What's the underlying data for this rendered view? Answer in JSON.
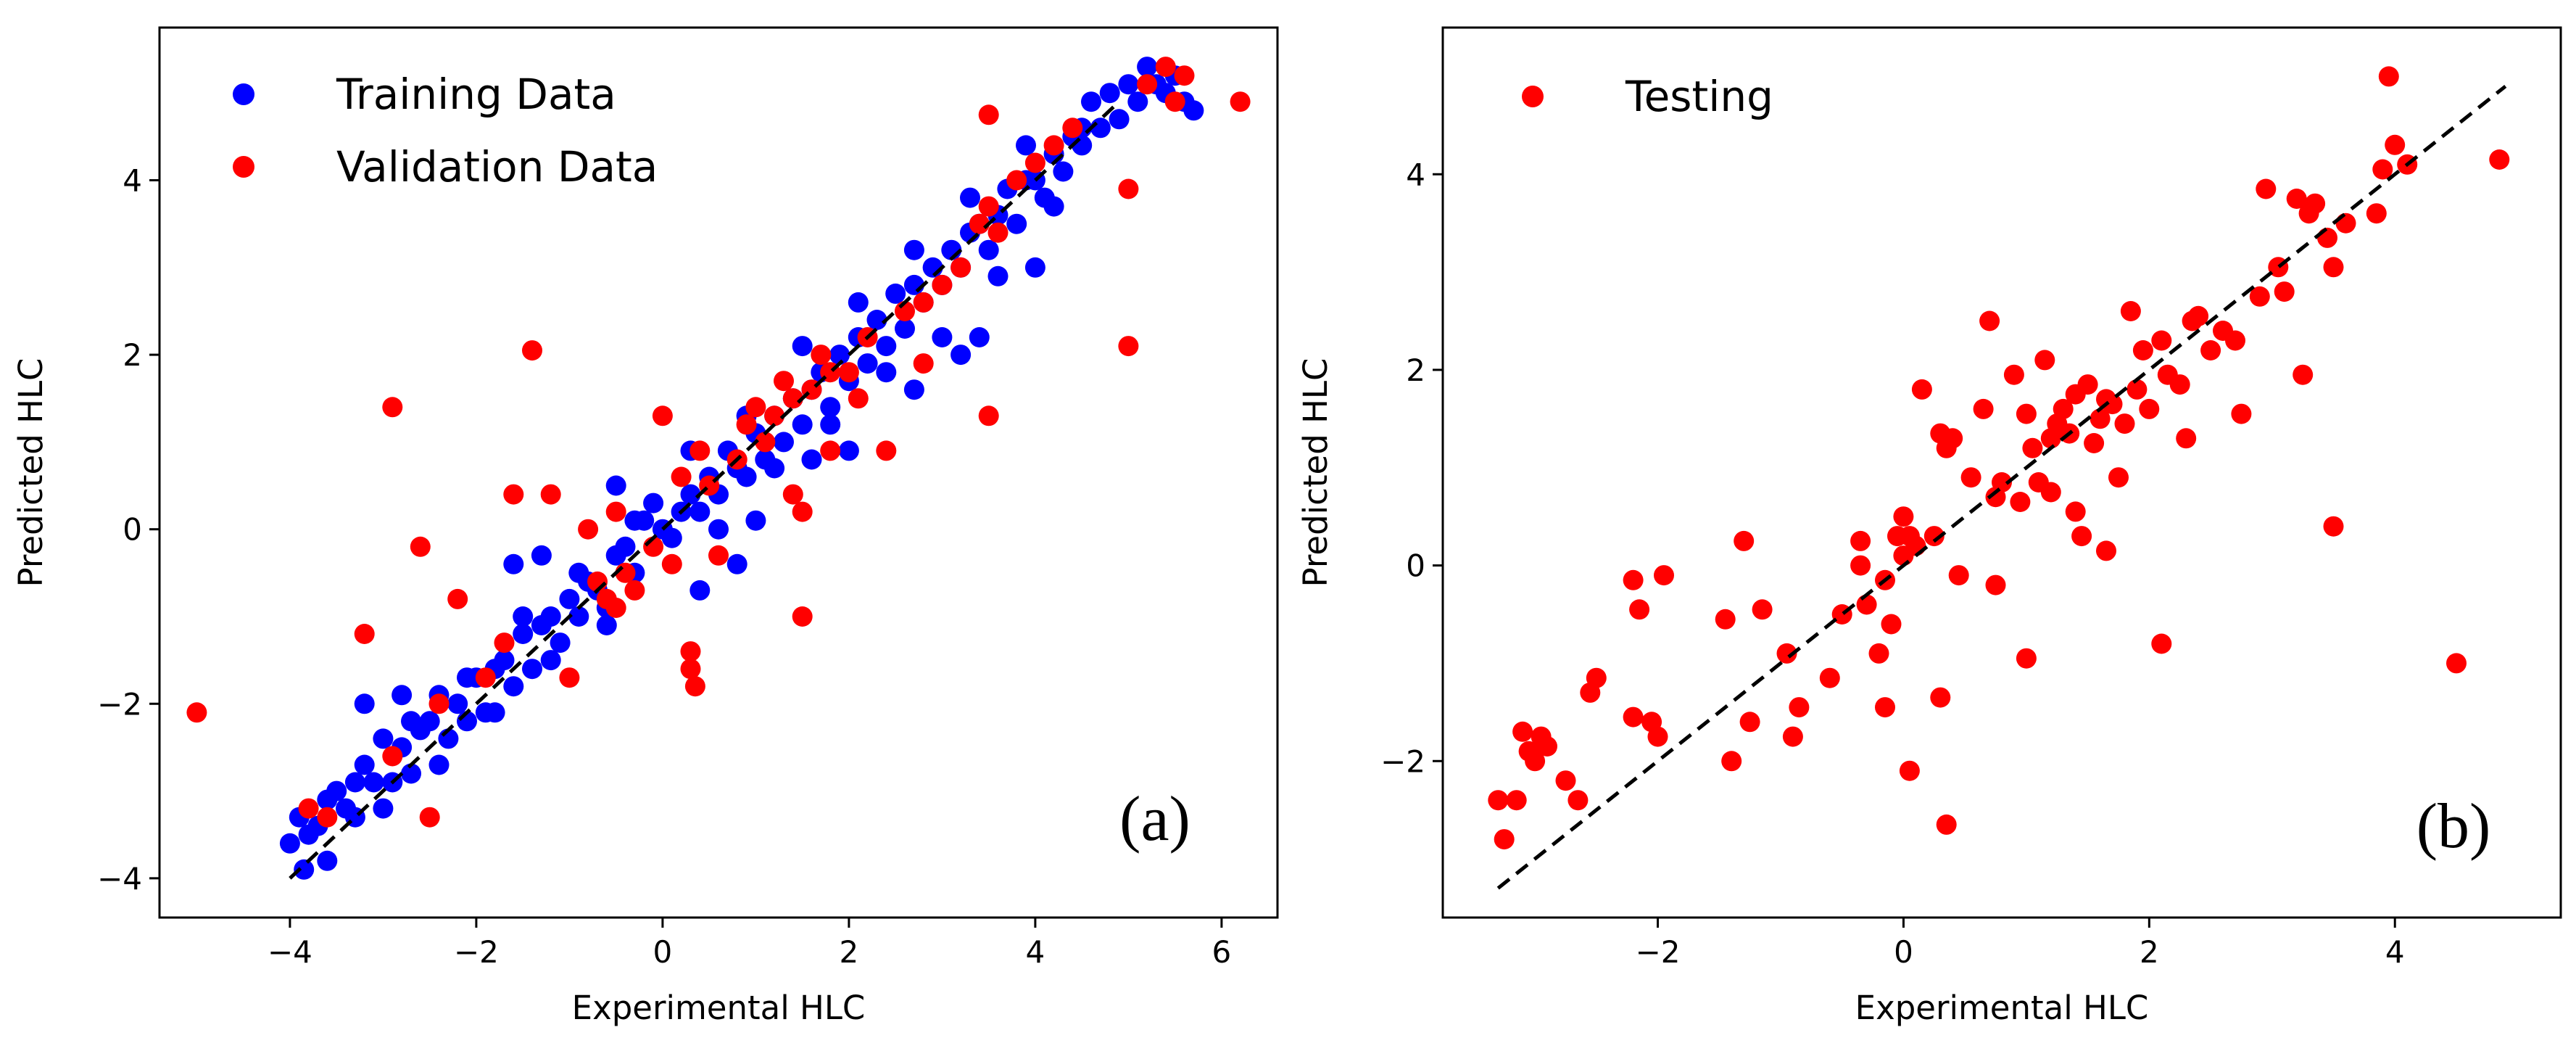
{
  "chart_data": [
    {
      "type": "scatter",
      "panel_label": "(a)",
      "xlabel": "Experimental HLC",
      "ylabel": "Predicted HLC",
      "xlim": [
        -5.4,
        6.6
      ],
      "ylim": [
        -4.45,
        5.75
      ],
      "xticks": [
        -4,
        -2,
        0,
        2,
        4,
        6
      ],
      "xtick_labels": [
        "−4",
        "−2",
        "0",
        "2",
        "4",
        "6"
      ],
      "yticks": [
        -4,
        -2,
        0,
        2,
        4
      ],
      "ytick_labels": [
        "−4",
        "−2",
        "0",
        "2",
        "4"
      ],
      "grid": false,
      "legend_position": "top-left",
      "reference_line": {
        "style": "dashed",
        "x": [
          -4.0,
          4.9
        ],
        "y": [
          -4.0,
          4.9
        ]
      },
      "series": [
        {
          "name": "Training Data",
          "color": "#0000ff",
          "x": [
            -4.0,
            -3.9,
            -3.85,
            -3.8,
            -3.7,
            -3.6,
            -3.5,
            -3.4,
            -3.3,
            -3.2,
            -3.1,
            -3.0,
            -2.9,
            -2.8,
            -2.7,
            -2.6,
            -2.5,
            -2.4,
            -2.3,
            -2.2,
            -2.1,
            -2.0,
            -1.9,
            -1.8,
            -1.7,
            -1.6,
            -1.5,
            -1.4,
            -1.3,
            -1.2,
            -1.1,
            -1.0,
            -0.9,
            -0.8,
            -0.7,
            -0.6,
            -0.5,
            -0.4,
            -0.3,
            -0.2,
            -0.1,
            0.0,
            0.1,
            0.2,
            0.3,
            0.4,
            0.5,
            0.6,
            0.7,
            0.8,
            0.9,
            1.0,
            1.1,
            1.2,
            1.3,
            1.4,
            1.5,
            1.6,
            1.7,
            1.8,
            1.9,
            2.0,
            2.1,
            2.2,
            2.3,
            2.4,
            2.5,
            2.6,
            2.7,
            2.8,
            2.9,
            3.0,
            3.1,
            3.2,
            3.3,
            3.4,
            3.5,
            3.6,
            3.7,
            3.8,
            3.9,
            4.0,
            4.1,
            4.2,
            4.3,
            4.4,
            4.5,
            4.6,
            4.7,
            4.8,
            4.9,
            5.0,
            5.1,
            5.2,
            5.3,
            5.4,
            5.5,
            5.6,
            5.7,
            -3.6,
            -3.3,
            -3.0,
            -2.7,
            -2.4,
            -2.1,
            -1.8,
            -1.5,
            -1.2,
            -0.9,
            -0.6,
            -0.3,
            0.3,
            0.6,
            0.9,
            1.2,
            1.5,
            1.8,
            2.1,
            2.4,
            2.7,
            3.0,
            3.3,
            3.6,
            3.9,
            4.2,
            4.5,
            -0.5,
            0.8,
            2.0,
            2.7,
            3.4,
            4.0,
            -2.8,
            -1.3,
            0.4,
            1.6,
            3.2,
            -3.2,
            -1.6,
            1.0
          ],
          "y": [
            -3.6,
            -3.3,
            -3.9,
            -3.5,
            -3.4,
            -3.1,
            -3.0,
            -3.2,
            -3.3,
            -2.7,
            -2.9,
            -2.4,
            -2.9,
            -2.5,
            -2.8,
            -2.3,
            -2.2,
            -1.9,
            -2.4,
            -2.0,
            -2.2,
            -1.7,
            -2.1,
            -1.6,
            -1.5,
            -1.8,
            -1.2,
            -1.6,
            -1.1,
            -1.0,
            -1.3,
            -0.8,
            -1.0,
            -0.6,
            -0.7,
            -0.9,
            -0.3,
            -0.2,
            -0.5,
            0.1,
            0.3,
            0.0,
            -0.1,
            0.2,
            0.4,
            0.2,
            0.6,
            0.4,
            0.9,
            0.7,
            0.6,
            1.1,
            0.8,
            1.3,
            1.0,
            1.5,
            1.2,
            1.6,
            1.8,
            1.4,
            2.0,
            1.7,
            2.2,
            1.9,
            2.4,
            2.1,
            2.7,
            2.3,
            2.8,
            2.6,
            3.0,
            2.8,
            3.2,
            3.0,
            3.4,
            3.5,
            3.2,
            3.6,
            3.9,
            3.5,
            4.0,
            4.0,
            3.8,
            4.3,
            4.1,
            4.5,
            4.4,
            4.9,
            4.6,
            5.0,
            4.7,
            5.1,
            4.9,
            5.3,
            5.1,
            5.0,
            5.2,
            4.9,
            4.8,
            -3.8,
            -2.9,
            -3.2,
            -2.2,
            -2.7,
            -1.7,
            -2.1,
            -1.0,
            -1.5,
            -0.5,
            -1.1,
            0.1,
            0.9,
            0.0,
            1.3,
            0.7,
            2.1,
            1.2,
            2.6,
            1.8,
            3.2,
            2.2,
            3.8,
            2.9,
            4.4,
            3.7,
            4.6,
            0.5,
            -0.4,
            0.9,
            1.6,
            2.2,
            3.0,
            -1.9,
            -0.3,
            -0.7,
            0.8,
            2.0,
            -2.0,
            -0.4,
            0.1
          ]
        },
        {
          "name": "Validation Data",
          "color": "#ff0000",
          "x": [
            -5.0,
            -3.8,
            -3.6,
            -3.2,
            -2.9,
            -2.6,
            -2.5,
            -2.4,
            -2.2,
            -1.9,
            -1.7,
            -1.6,
            -1.4,
            -1.2,
            -1.0,
            -0.8,
            -0.7,
            -0.6,
            -0.5,
            -0.4,
            -0.3,
            -0.1,
            0.0,
            0.1,
            0.2,
            0.3,
            0.35,
            0.5,
            0.6,
            0.8,
            0.9,
            1.0,
            1.1,
            1.2,
            1.3,
            1.4,
            1.5,
            1.6,
            1.7,
            1.8,
            2.0,
            2.1,
            2.2,
            2.4,
            2.6,
            2.8,
            3.0,
            3.2,
            3.4,
            3.5,
            3.6,
            3.8,
            4.0,
            4.2,
            4.4,
            5.0,
            5.0,
            5.2,
            5.4,
            5.5,
            5.6,
            6.2,
            1.5,
            1.4,
            2.8,
            0.3,
            -0.5,
            0.4,
            1.8,
            3.5,
            3.5,
            -2.9
          ],
          "y": [
            -2.1,
            -3.2,
            -3.3,
            -1.2,
            -2.6,
            -0.2,
            -3.3,
            -2.0,
            -0.8,
            -1.7,
            -1.3,
            0.4,
            2.05,
            0.4,
            -1.7,
            0.0,
            -0.6,
            -0.8,
            0.2,
            -0.5,
            -0.7,
            -0.2,
            1.3,
            -0.4,
            0.6,
            -1.6,
            -1.8,
            0.5,
            -0.3,
            0.8,
            1.2,
            1.4,
            1.0,
            1.3,
            1.7,
            1.5,
            0.2,
            1.6,
            2.0,
            1.8,
            1.8,
            1.5,
            2.2,
            0.9,
            2.5,
            2.6,
            2.8,
            3.0,
            3.5,
            3.7,
            3.4,
            4.0,
            4.2,
            4.4,
            4.6,
            2.1,
            3.9,
            5.1,
            5.3,
            4.9,
            5.2,
            4.9,
            -1.0,
            0.4,
            1.9,
            -1.4,
            -0.9,
            0.9,
            0.9,
            1.3,
            4.75,
            1.4
          ]
        }
      ]
    },
    {
      "type": "scatter",
      "panel_label": "(b)",
      "xlabel": "Experimental HLC",
      "ylabel": "Predicted HLC",
      "xlim": [
        -3.75,
        5.35
      ],
      "ylim": [
        -3.6,
        5.5
      ],
      "xticks": [
        -2,
        0,
        2,
        4
      ],
      "xtick_labels": [
        "−2",
        "0",
        "2",
        "4"
      ],
      "yticks": [
        -2,
        0,
        2,
        4
      ],
      "ytick_labels": [
        "−2",
        "0",
        "2",
        "4"
      ],
      "grid": false,
      "legend_position": "top-left",
      "reference_line": {
        "style": "dashed",
        "x": [
          -3.3,
          4.9
        ],
        "y": [
          -3.3,
          4.9
        ]
      },
      "series": [
        {
          "name": "Testing",
          "color": "#ff0000",
          "x": [
            -3.3,
            -3.25,
            -3.15,
            -3.1,
            -3.05,
            -3.0,
            -2.95,
            -2.9,
            -2.75,
            -2.65,
            -2.55,
            -2.5,
            -2.2,
            -2.2,
            -2.15,
            -2.05,
            -2.0,
            -1.95,
            -1.45,
            -1.4,
            -1.3,
            -1.25,
            -1.15,
            -0.95,
            -0.9,
            -0.85,
            -0.6,
            -0.5,
            -0.35,
            -0.3,
            -0.2,
            -0.15,
            -0.1,
            -0.05,
            0.0,
            0.0,
            0.05,
            0.1,
            0.15,
            0.25,
            0.3,
            0.35,
            0.4,
            0.45,
            0.55,
            0.65,
            0.7,
            0.75,
            0.8,
            0.9,
            0.95,
            1.0,
            1.05,
            1.1,
            1.15,
            1.2,
            1.25,
            1.3,
            1.35,
            1.4,
            1.45,
            1.5,
            1.55,
            1.6,
            1.65,
            1.7,
            1.75,
            1.8,
            1.85,
            1.9,
            1.95,
            2.0,
            2.1,
            2.15,
            2.25,
            2.3,
            2.35,
            2.4,
            2.5,
            2.6,
            2.7,
            2.75,
            2.9,
            2.95,
            3.05,
            3.1,
            3.2,
            3.25,
            3.3,
            3.35,
            3.45,
            3.5,
            3.6,
            3.85,
            3.9,
            3.95,
            4.0,
            4.1,
            4.5,
            4.85,
            0.35,
            0.05,
            -0.15,
            1.0,
            1.65,
            2.1,
            3.5,
            0.3,
            -0.35,
            1.4,
            0.75,
            1.2
          ],
          "y": [
            -2.4,
            -2.8,
            -2.4,
            -1.7,
            -1.9,
            -2.0,
            -1.75,
            -1.85,
            -2.2,
            -2.4,
            -1.3,
            -1.15,
            -1.55,
            -0.15,
            -0.45,
            -1.6,
            -1.75,
            -0.1,
            -0.55,
            -2.0,
            0.25,
            -1.6,
            -0.45,
            -0.9,
            -1.75,
            -1.45,
            -1.15,
            -0.5,
            0.25,
            -0.4,
            -0.9,
            -0.15,
            -0.6,
            0.3,
            0.5,
            0.1,
            0.3,
            0.2,
            1.8,
            0.3,
            1.35,
            1.2,
            1.3,
            -0.1,
            0.9,
            1.6,
            2.5,
            0.7,
            0.85,
            1.95,
            0.65,
            1.55,
            1.2,
            0.85,
            2.1,
            0.75,
            1.45,
            1.6,
            1.35,
            1.75,
            0.3,
            1.85,
            1.25,
            1.5,
            1.7,
            1.65,
            0.9,
            1.45,
            2.6,
            1.8,
            2.2,
            1.6,
            2.3,
            1.95,
            1.85,
            1.3,
            2.5,
            2.55,
            2.2,
            2.4,
            2.3,
            1.55,
            2.75,
            3.85,
            3.05,
            2.8,
            3.75,
            1.95,
            3.6,
            3.7,
            3.35,
            3.05,
            3.5,
            3.6,
            4.05,
            5.0,
            4.3,
            4.1,
            -1.0,
            4.15,
            -2.65,
            -2.1,
            -1.45,
            -0.95,
            0.15,
            -0.8,
            0.4,
            -1.35,
            0.0,
            0.55,
            -0.2,
            1.3
          ]
        }
      ]
    }
  ]
}
